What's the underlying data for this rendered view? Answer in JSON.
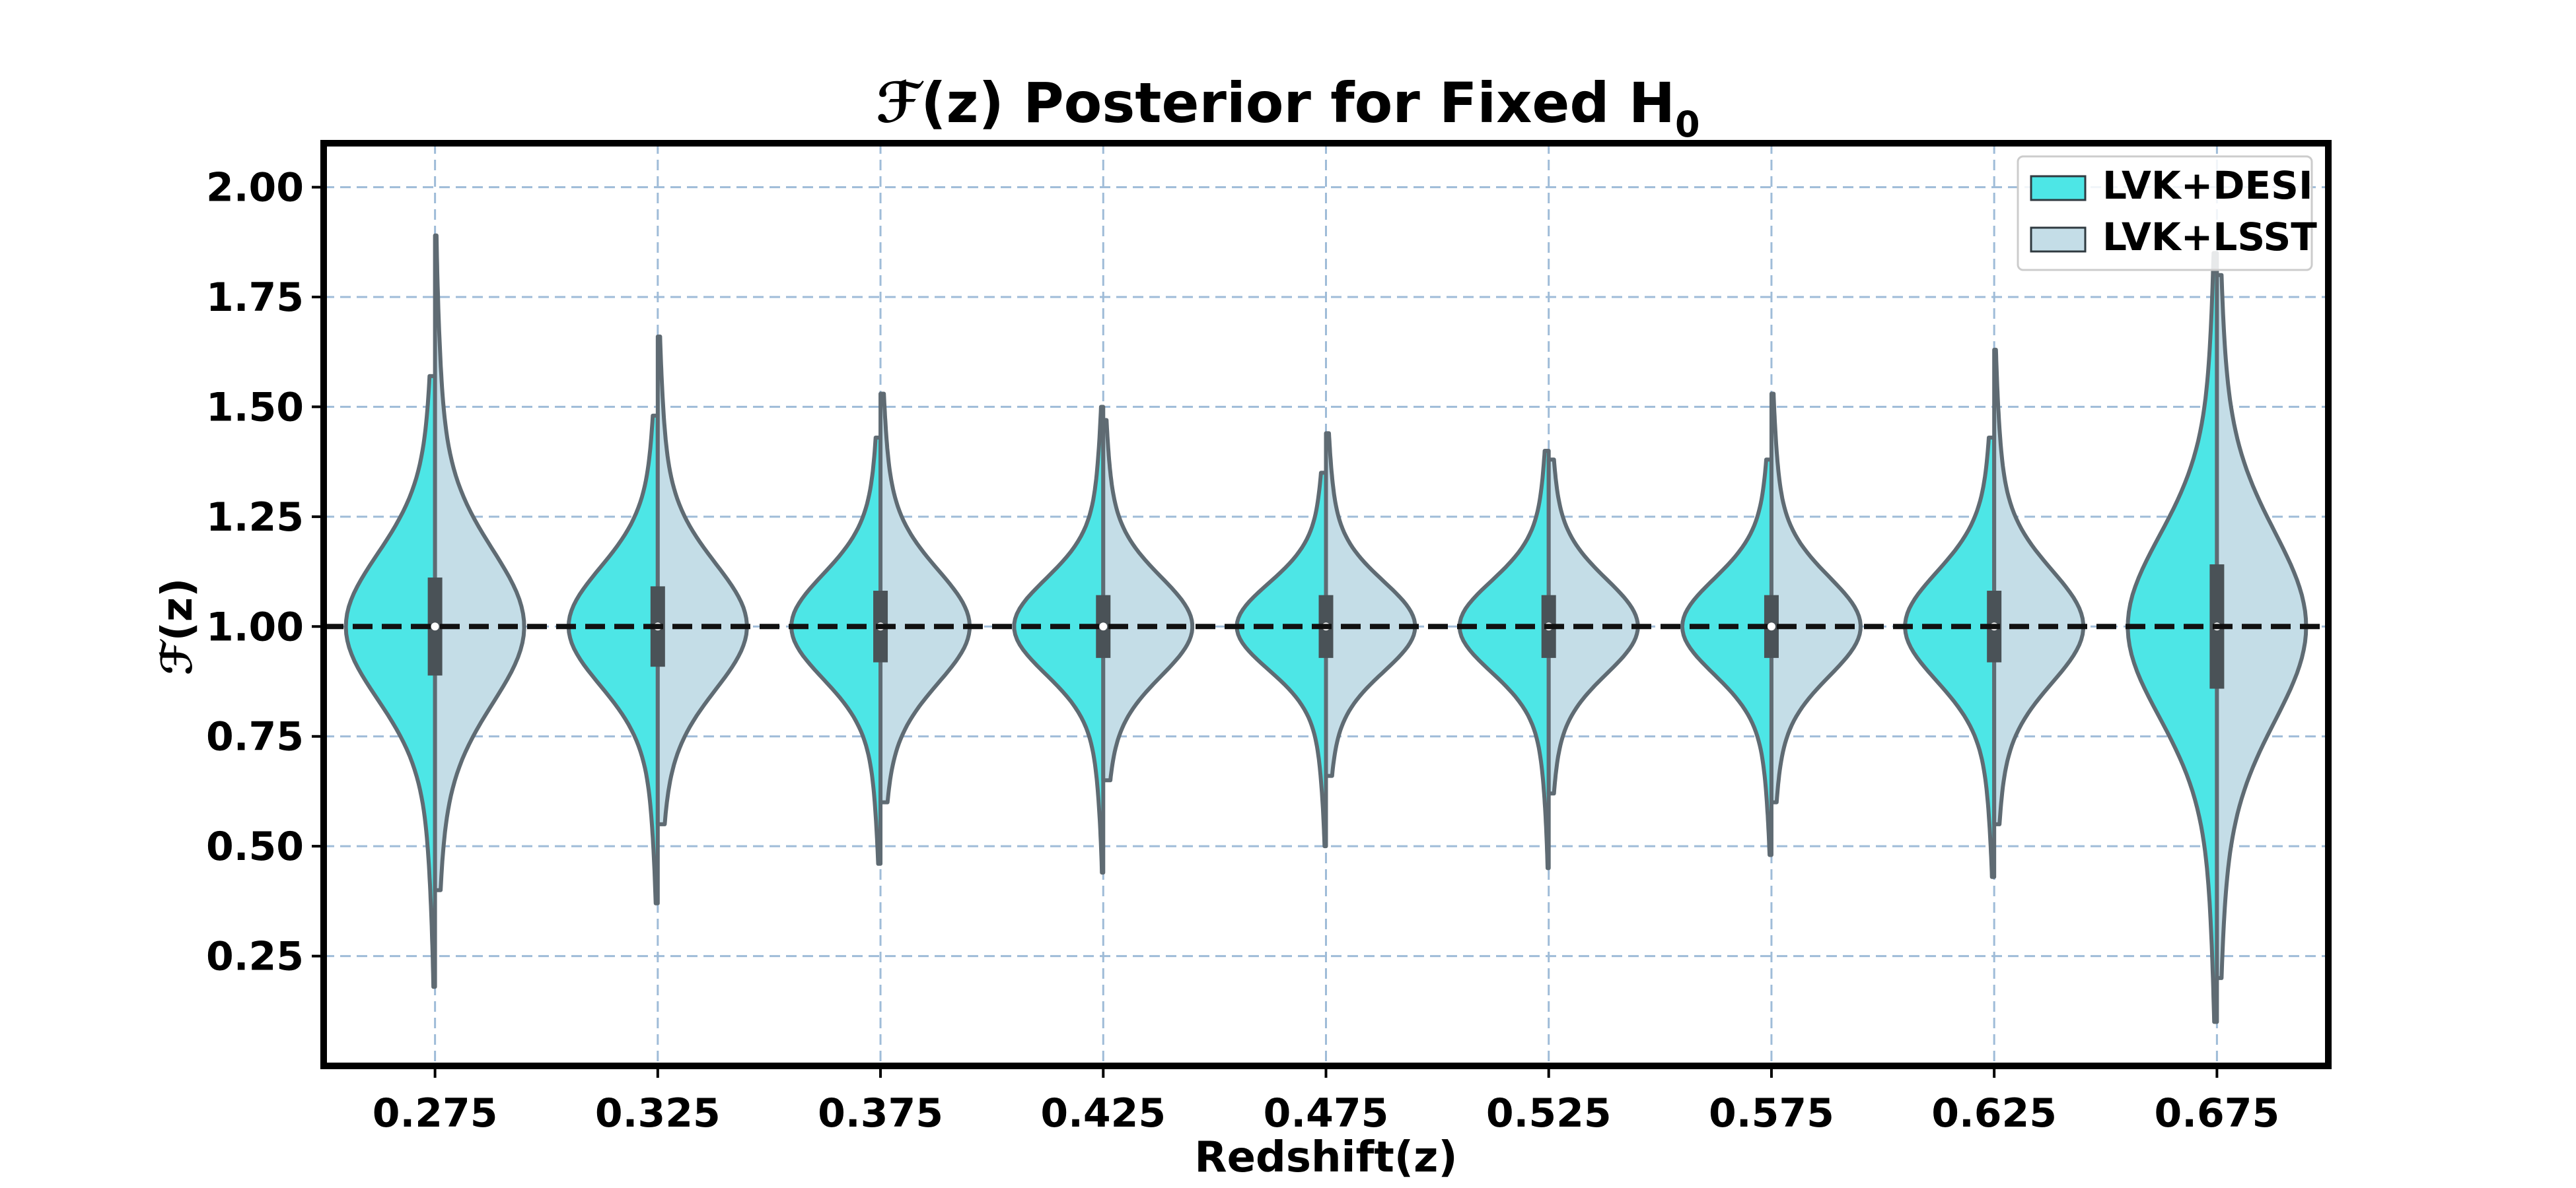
{
  "chart_data": {
    "type": "violin",
    "title": "ℱ(z) Posterior for Fixed H",
    "title_subscript": "0",
    "xlabel": "Redshift(z)",
    "ylabel": "ℱ(z)",
    "ylim": [
      0.0,
      2.1
    ],
    "yticks": [
      "2.00",
      "1.75",
      "1.50",
      "1.25",
      "1.00",
      "0.75",
      "0.50",
      "0.25"
    ],
    "ytick_values": [
      2.0,
      1.75,
      1.5,
      1.25,
      1.0,
      0.75,
      0.5,
      0.25
    ],
    "categories": [
      "0.275",
      "0.325",
      "0.375",
      "0.425",
      "0.475",
      "0.525",
      "0.575",
      "0.625",
      "0.675"
    ],
    "reference_line": 1.0,
    "grid": true,
    "legend_position": "top-right",
    "series": [
      {
        "name": "LVK+DESI",
        "color": "#4de6e6",
        "sigma": [
          0.16,
          0.13,
          0.115,
          0.105,
          0.095,
          0.1,
          0.105,
          0.12,
          0.2
        ],
        "min": [
          0.18,
          0.37,
          0.46,
          0.44,
          0.5,
          0.45,
          0.48,
          0.43,
          0.1
        ],
        "max": [
          1.57,
          1.48,
          1.43,
          1.5,
          1.35,
          1.4,
          1.38,
          1.43,
          1.85
        ]
      },
      {
        "name": "LVK+LSST",
        "color": "#c4dde7",
        "sigma": [
          0.17,
          0.14,
          0.125,
          0.11,
          0.1,
          0.105,
          0.11,
          0.125,
          0.21
        ],
        "min": [
          0.4,
          0.55,
          0.6,
          0.65,
          0.66,
          0.62,
          0.6,
          0.55,
          0.2
        ],
        "max": [
          1.89,
          1.66,
          1.53,
          1.47,
          1.44,
          1.38,
          1.53,
          1.63,
          1.8
        ]
      }
    ],
    "quartiles": [
      [
        0.89,
        1.11
      ],
      [
        0.91,
        1.09
      ],
      [
        0.92,
        1.08
      ],
      [
        0.93,
        1.07
      ],
      [
        0.93,
        1.07
      ],
      [
        0.93,
        1.07
      ],
      [
        0.93,
        1.07
      ],
      [
        0.92,
        1.08
      ],
      [
        0.86,
        1.14
      ]
    ]
  }
}
